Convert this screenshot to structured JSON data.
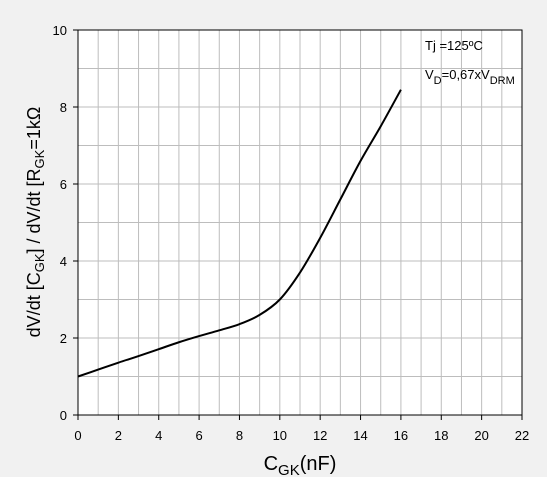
{
  "chart_data": {
    "type": "line",
    "title": "",
    "xlabel": {
      "main": "C",
      "sub": "GK",
      "tail": "(nF)"
    },
    "ylabel": {
      "p1": "dV/dt [C",
      "p1sub": "GK",
      "p2": "] / dV/dt [R",
      "p2sub": "GK",
      "p3": "=1kΩ"
    },
    "xlim": [
      0,
      22
    ],
    "ylim": [
      0,
      10
    ],
    "x_ticks": [
      0,
      2,
      4,
      6,
      8,
      10,
      12,
      14,
      16,
      18,
      20,
      22
    ],
    "y_ticks": [
      0,
      2,
      4,
      6,
      8,
      10
    ],
    "x_minor_step": 1,
    "y_minor_step": 1,
    "grid": true,
    "annotations": {
      "line1": "Tj =125ºC",
      "line2": {
        "a": "V",
        "asub": "D",
        "b": "=0,67xV",
        "bsub": "DRM"
      }
    },
    "series": [
      {
        "x": [
          0,
          1,
          2,
          3,
          4,
          5,
          6,
          7,
          8,
          9,
          10,
          11,
          12,
          13,
          14,
          15,
          16
        ],
        "y": [
          1.0,
          1.18,
          1.36,
          1.53,
          1.71,
          1.89,
          2.05,
          2.2,
          2.36,
          2.6,
          3.0,
          3.7,
          4.6,
          5.6,
          6.6,
          7.5,
          8.45
        ]
      }
    ]
  }
}
